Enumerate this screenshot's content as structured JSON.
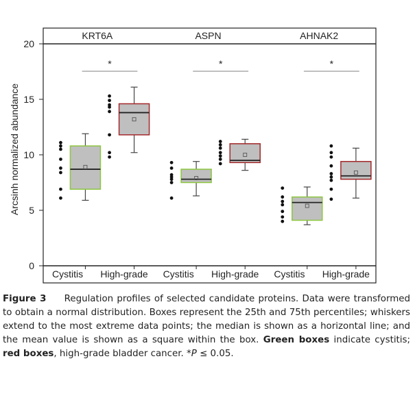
{
  "chart_data": {
    "type": "boxplot",
    "ylabel": "Arcsinh normalized abundance",
    "ylim": [
      0,
      20
    ],
    "yticks": [
      0,
      5,
      10,
      15,
      20
    ],
    "x_categories": [
      "Cystitis",
      "High-grade",
      "Cystitis",
      "High-grade",
      "Cystitis",
      "High-grade"
    ],
    "significance_marker": "*",
    "colors": {
      "cystitis": "#8dc63f",
      "high_grade": "#a3282a",
      "box_fill": "#bfbfbf"
    },
    "panels": [
      {
        "title": "KRT6A",
        "groups": [
          {
            "label": "Cystitis",
            "q1": 6.9,
            "median": 8.7,
            "q3": 10.8,
            "mean": 8.9,
            "whisker_low": 5.9,
            "whisker_high": 11.9,
            "points": [
              11.1,
              10.8,
              10.5,
              9.6,
              8.8,
              8.4,
              6.9,
              6.1
            ]
          },
          {
            "label": "High-grade",
            "q1": 11.8,
            "median": 13.8,
            "q3": 14.6,
            "mean": 13.2,
            "whisker_low": 10.2,
            "whisker_high": 16.1,
            "points": [
              15.3,
              14.9,
              14.5,
              14.3,
              13.9,
              11.8,
              10.2,
              9.8
            ]
          }
        ]
      },
      {
        "title": "ASPN",
        "groups": [
          {
            "label": "Cystitis",
            "q1": 7.5,
            "median": 7.8,
            "q3": 8.7,
            "mean": 7.9,
            "whisker_low": 6.3,
            "whisker_high": 9.4,
            "points": [
              9.3,
              8.8,
              8.2,
              8.0,
              7.8,
              7.5,
              6.1
            ]
          },
          {
            "label": "High-grade",
            "q1": 9.3,
            "median": 9.5,
            "q3": 11.0,
            "mean": 10.0,
            "whisker_low": 8.6,
            "whisker_high": 11.4,
            "points": [
              11.2,
              10.9,
              10.6,
              10.2,
              9.9,
              9.6,
              9.2
            ]
          }
        ]
      },
      {
        "title": "AHNAK2",
        "groups": [
          {
            "label": "Cystitis",
            "q1": 4.1,
            "median": 5.7,
            "q3": 6.2,
            "mean": 5.4,
            "whisker_low": 3.7,
            "whisker_high": 7.1,
            "points": [
              7.0,
              6.2,
              5.8,
              5.5,
              4.9,
              4.4,
              4.0
            ]
          },
          {
            "label": "High-grade",
            "q1": 7.8,
            "median": 8.1,
            "q3": 9.4,
            "mean": 8.4,
            "whisker_low": 6.1,
            "whisker_high": 10.6,
            "points": [
              10.8,
              10.2,
              9.8,
              9.0,
              8.3,
              8.0,
              7.7,
              6.9,
              6.0
            ]
          }
        ]
      }
    ]
  },
  "caption": {
    "label": "Figure 3",
    "text1": "Regulation profiles of selected candidate proteins. Data were transformed to obtain a normal distribution. Boxes represent the 25th and 75th percentiles; whiskers extend to the most extreme data points; the median is shown as a horizontal line; and the mean value is shown as a square within the box.",
    "green_label": "Green boxes",
    "text2": "indicate cystitis;",
    "red_label": "red boxes",
    "text3": ", high-grade bladder cancer. *",
    "p_label": "P",
    "text4": "≤ 0.05."
  }
}
